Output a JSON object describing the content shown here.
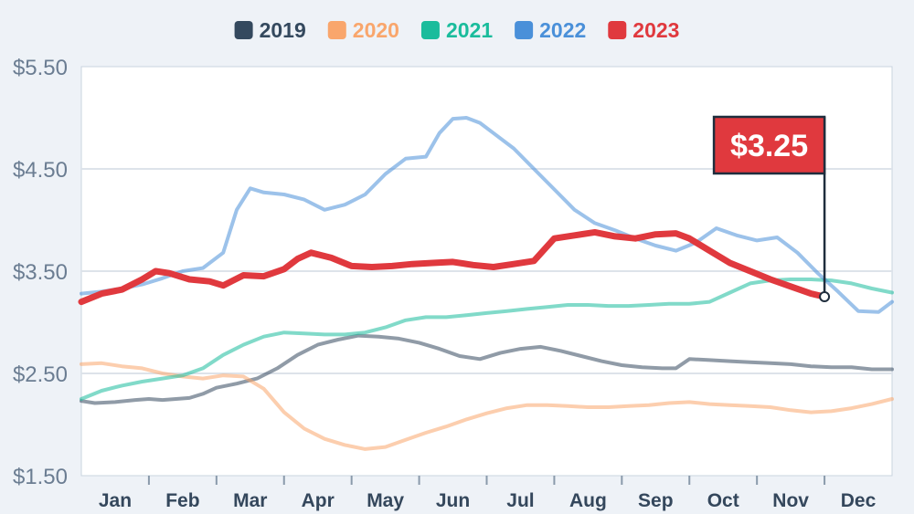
{
  "chart_data": {
    "type": "line",
    "title": "",
    "xlabel": "",
    "ylabel": "",
    "ylim": [
      1.5,
      5.5
    ],
    "yticks": [
      1.5,
      2.5,
      3.5,
      4.5,
      5.5
    ],
    "ytick_labels": [
      "$1.50",
      "$2.50",
      "$3.50",
      "$4.50",
      "$5.50"
    ],
    "categories": [
      "Jan",
      "Feb",
      "Mar",
      "Apr",
      "May",
      "Jun",
      "Jul",
      "Aug",
      "Sep",
      "Oct",
      "Nov",
      "Dec"
    ],
    "legend_position": "top-center",
    "grid": true,
    "colors": {
      "2019": "#34495e",
      "2020": "#f9a66c",
      "2021": "#1abc9c",
      "2022": "#4a90d9",
      "2023": "#e0393e"
    },
    "series": [
      {
        "name": "2019",
        "color": "#34495e",
        "emphasis": false,
        "x": [
          0,
          0.2,
          0.5,
          0.8,
          1.0,
          1.2,
          1.4,
          1.6,
          1.8,
          2.0,
          2.3,
          2.6,
          2.9,
          3.2,
          3.5,
          3.8,
          4.1,
          4.4,
          4.7,
          5.0,
          5.3,
          5.6,
          5.9,
          6.2,
          6.5,
          6.8,
          7.1,
          7.4,
          7.7,
          8.0,
          8.3,
          8.6,
          8.8,
          9.0,
          9.3,
          9.6,
          9.9,
          10.2,
          10.5,
          10.8,
          11.1,
          11.4,
          11.7,
          12.0
        ],
        "values": [
          2.23,
          2.21,
          2.22,
          2.24,
          2.25,
          2.24,
          2.25,
          2.26,
          2.3,
          2.36,
          2.4,
          2.45,
          2.55,
          2.68,
          2.78,
          2.83,
          2.87,
          2.86,
          2.84,
          2.8,
          2.74,
          2.67,
          2.64,
          2.7,
          2.74,
          2.76,
          2.72,
          2.67,
          2.62,
          2.58,
          2.56,
          2.55,
          2.55,
          2.64,
          2.63,
          2.62,
          2.61,
          2.6,
          2.59,
          2.57,
          2.56,
          2.56,
          2.54,
          2.54
        ]
      },
      {
        "name": "2020",
        "color": "#f9a66c",
        "emphasis": false,
        "x": [
          0,
          0.3,
          0.6,
          0.9,
          1.2,
          1.5,
          1.8,
          2.1,
          2.4,
          2.7,
          3.0,
          3.3,
          3.6,
          3.9,
          4.2,
          4.5,
          4.8,
          5.1,
          5.4,
          5.7,
          6.0,
          6.3,
          6.6,
          6.9,
          7.2,
          7.5,
          7.8,
          8.1,
          8.4,
          8.7,
          9.0,
          9.3,
          9.6,
          9.9,
          10.2,
          10.5,
          10.8,
          11.1,
          11.4,
          11.7,
          12.0
        ],
        "values": [
          2.59,
          2.6,
          2.57,
          2.55,
          2.5,
          2.47,
          2.45,
          2.48,
          2.47,
          2.35,
          2.12,
          1.96,
          1.86,
          1.8,
          1.76,
          1.78,
          1.85,
          1.92,
          1.98,
          2.05,
          2.11,
          2.16,
          2.19,
          2.19,
          2.18,
          2.17,
          2.17,
          2.18,
          2.19,
          2.21,
          2.22,
          2.2,
          2.19,
          2.18,
          2.17,
          2.14,
          2.12,
          2.13,
          2.16,
          2.2,
          2.25
        ]
      },
      {
        "name": "2021",
        "color": "#1abc9c",
        "emphasis": false,
        "x": [
          0,
          0.3,
          0.6,
          0.9,
          1.2,
          1.5,
          1.8,
          2.1,
          2.4,
          2.7,
          3.0,
          3.3,
          3.6,
          3.9,
          4.2,
          4.5,
          4.8,
          5.1,
          5.4,
          5.7,
          6.0,
          6.3,
          6.6,
          6.9,
          7.2,
          7.5,
          7.8,
          8.1,
          8.4,
          8.7,
          9.0,
          9.3,
          9.6,
          9.9,
          10.2,
          10.5,
          10.8,
          11.1,
          11.4,
          11.7,
          12.0
        ],
        "values": [
          2.25,
          2.33,
          2.38,
          2.42,
          2.45,
          2.48,
          2.55,
          2.68,
          2.78,
          2.86,
          2.9,
          2.89,
          2.88,
          2.88,
          2.9,
          2.95,
          3.02,
          3.05,
          3.05,
          3.07,
          3.09,
          3.11,
          3.13,
          3.15,
          3.17,
          3.17,
          3.16,
          3.16,
          3.17,
          3.18,
          3.18,
          3.2,
          3.29,
          3.38,
          3.41,
          3.42,
          3.42,
          3.41,
          3.38,
          3.33,
          3.29
        ]
      },
      {
        "name": "2022",
        "color": "#4a90d9",
        "emphasis": false,
        "x": [
          0,
          0.3,
          0.6,
          0.9,
          1.2,
          1.5,
          1.8,
          2.1,
          2.3,
          2.5,
          2.7,
          3.0,
          3.3,
          3.6,
          3.9,
          4.2,
          4.5,
          4.8,
          5.1,
          5.3,
          5.5,
          5.7,
          5.9,
          6.1,
          6.4,
          6.7,
          7.0,
          7.3,
          7.6,
          7.9,
          8.2,
          8.5,
          8.8,
          9.1,
          9.4,
          9.7,
          10.0,
          10.3,
          10.6,
          10.9,
          11.2,
          11.5,
          11.8,
          12.0
        ],
        "values": [
          3.28,
          3.3,
          3.33,
          3.37,
          3.43,
          3.5,
          3.53,
          3.68,
          4.1,
          4.31,
          4.27,
          4.25,
          4.2,
          4.1,
          4.15,
          4.25,
          4.45,
          4.6,
          4.62,
          4.85,
          4.99,
          5.0,
          4.95,
          4.85,
          4.7,
          4.5,
          4.3,
          4.1,
          3.97,
          3.9,
          3.82,
          3.75,
          3.7,
          3.78,
          3.92,
          3.85,
          3.8,
          3.83,
          3.68,
          3.48,
          3.3,
          3.11,
          3.1,
          3.2
        ]
      },
      {
        "name": "2023",
        "color": "#e0393e",
        "emphasis": true,
        "x": [
          0,
          0.3,
          0.6,
          0.9,
          1.1,
          1.3,
          1.6,
          1.9,
          2.1,
          2.4,
          2.7,
          3.0,
          3.2,
          3.4,
          3.7,
          4.0,
          4.3,
          4.6,
          4.9,
          5.2,
          5.5,
          5.8,
          6.1,
          6.4,
          6.7,
          7.0,
          7.3,
          7.6,
          7.9,
          8.2,
          8.5,
          8.8,
          9.0,
          9.3,
          9.6,
          9.9,
          10.2,
          10.5,
          10.8,
          11.0
        ],
        "values": [
          3.2,
          3.28,
          3.32,
          3.42,
          3.5,
          3.48,
          3.42,
          3.4,
          3.36,
          3.46,
          3.45,
          3.52,
          3.62,
          3.68,
          3.63,
          3.55,
          3.54,
          3.55,
          3.57,
          3.58,
          3.59,
          3.56,
          3.54,
          3.57,
          3.6,
          3.82,
          3.85,
          3.88,
          3.84,
          3.82,
          3.86,
          3.87,
          3.82,
          3.7,
          3.58,
          3.5,
          3.42,
          3.35,
          3.28,
          3.25
        ]
      }
    ],
    "annotation": {
      "series": "2023",
      "x": 11.0,
      "value": 3.25,
      "label": "$3.25"
    }
  }
}
